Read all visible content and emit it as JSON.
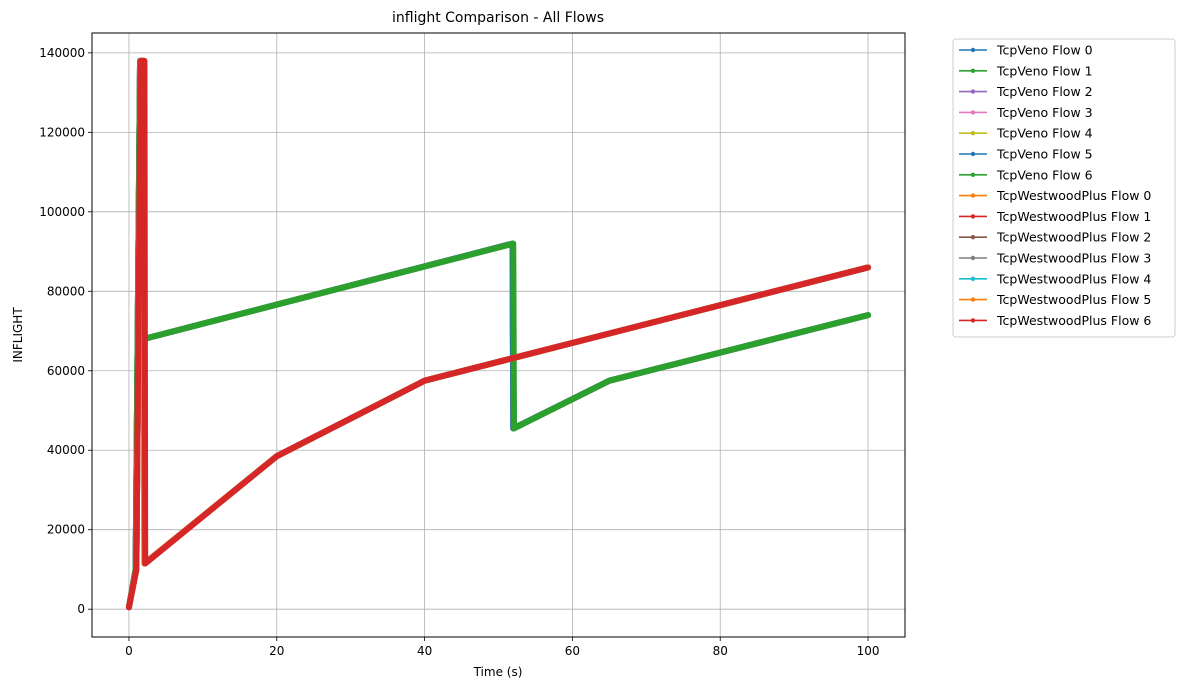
{
  "chart_data": {
    "type": "line",
    "title": "inflight Comparison - All Flows",
    "xlabel": "Time (s)",
    "ylabel": "INFLIGHT",
    "xlim": [
      -5,
      105
    ],
    "ylim": [
      -7000,
      145000
    ],
    "xticks": [
      0,
      20,
      40,
      60,
      80,
      100
    ],
    "yticks": [
      0,
      20000,
      40000,
      60000,
      80000,
      100000,
      120000,
      140000
    ],
    "grid": true,
    "legend_position": "outside-top-right",
    "series": [
      {
        "name": "TcpVeno Flow 0",
        "color": "#1f77b4",
        "points": [
          [
            0,
            500
          ],
          [
            0.9,
            10000
          ],
          [
            1.5,
            138000
          ],
          [
            1.9,
            138000
          ],
          [
            2.0,
            68000
          ],
          [
            51.9,
            92000
          ],
          [
            52.0,
            45500
          ],
          [
            65,
            57500
          ],
          [
            100,
            74000
          ]
        ]
      },
      {
        "name": "TcpVeno Flow 1",
        "color": "#2ca02c",
        "points": [
          [
            0,
            500
          ],
          [
            0.9,
            10000
          ],
          [
            1.5,
            138000
          ],
          [
            1.9,
            138000
          ],
          [
            2.0,
            68000
          ],
          [
            51.9,
            92000
          ],
          [
            52.0,
            45500
          ],
          [
            65,
            57500
          ],
          [
            100,
            74000
          ]
        ]
      },
      {
        "name": "TcpVeno Flow 2",
        "color": "#9467bd",
        "points": [
          [
            0,
            500
          ],
          [
            0.9,
            10000
          ],
          [
            1.5,
            138000
          ],
          [
            1.9,
            138000
          ],
          [
            2.0,
            68000
          ],
          [
            51.9,
            92000
          ],
          [
            52.0,
            45500
          ],
          [
            65,
            57500
          ],
          [
            100,
            74000
          ]
        ]
      },
      {
        "name": "TcpVeno Flow 3",
        "color": "#e377c2",
        "points": [
          [
            0,
            500
          ],
          [
            0.9,
            10000
          ],
          [
            1.5,
            138000
          ],
          [
            1.9,
            138000
          ],
          [
            2.0,
            68000
          ],
          [
            51.9,
            92000
          ],
          [
            52.0,
            45500
          ],
          [
            65,
            57500
          ],
          [
            100,
            74000
          ]
        ]
      },
      {
        "name": "TcpVeno Flow 4",
        "color": "#bcbd22",
        "points": [
          [
            0,
            500
          ],
          [
            0.9,
            10000
          ],
          [
            1.5,
            138000
          ],
          [
            1.9,
            138000
          ],
          [
            2.0,
            68000
          ],
          [
            51.9,
            92000
          ],
          [
            52.0,
            45500
          ],
          [
            65,
            57500
          ],
          [
            100,
            74000
          ]
        ]
      },
      {
        "name": "TcpVeno Flow 5",
        "color": "#1f77b4",
        "points": [
          [
            0,
            500
          ],
          [
            0.9,
            10000
          ],
          [
            1.5,
            138000
          ],
          [
            1.9,
            138000
          ],
          [
            2.0,
            68000
          ],
          [
            51.9,
            92000
          ],
          [
            52.0,
            45500
          ],
          [
            65,
            57500
          ],
          [
            100,
            74000
          ]
        ]
      },
      {
        "name": "TcpVeno Flow 6",
        "color": "#2ca02c",
        "points": [
          [
            0,
            500
          ],
          [
            0.9,
            10000
          ],
          [
            1.5,
            138000
          ],
          [
            1.9,
            138000
          ],
          [
            2.0,
            68000
          ],
          [
            52.0,
            92000
          ],
          [
            52.1,
            45500
          ],
          [
            65,
            57500
          ],
          [
            100,
            74000
          ]
        ]
      },
      {
        "name": "TcpWestwoodPlus Flow 0",
        "color": "#ff7f0e",
        "points": [
          [
            0,
            500
          ],
          [
            1.0,
            10000
          ],
          [
            1.6,
            138000
          ],
          [
            2.0,
            138000
          ],
          [
            2.1,
            11500
          ],
          [
            20,
            38500
          ],
          [
            40,
            57500
          ],
          [
            100,
            86000
          ]
        ]
      },
      {
        "name": "TcpWestwoodPlus Flow 1",
        "color": "#d62728",
        "points": [
          [
            0,
            500
          ],
          [
            1.0,
            10000
          ],
          [
            1.6,
            138000
          ],
          [
            2.0,
            138000
          ],
          [
            2.1,
            11500
          ],
          [
            20,
            38500
          ],
          [
            40,
            57500
          ],
          [
            100,
            86000
          ]
        ]
      },
      {
        "name": "TcpWestwoodPlus Flow 2",
        "color": "#8c564b",
        "points": [
          [
            0,
            500
          ],
          [
            1.0,
            10000
          ],
          [
            1.6,
            138000
          ],
          [
            2.0,
            138000
          ],
          [
            2.1,
            11500
          ],
          [
            20,
            38500
          ],
          [
            40,
            57500
          ],
          [
            100,
            86000
          ]
        ]
      },
      {
        "name": "TcpWestwoodPlus Flow 3",
        "color": "#7f7f7f",
        "points": [
          [
            0,
            500
          ],
          [
            1.0,
            10000
          ],
          [
            1.6,
            138000
          ],
          [
            2.0,
            138000
          ],
          [
            2.1,
            11500
          ],
          [
            20,
            38500
          ],
          [
            40,
            57500
          ],
          [
            100,
            86000
          ]
        ]
      },
      {
        "name": "TcpWestwoodPlus Flow 4",
        "color": "#17becf",
        "points": [
          [
            0,
            500
          ],
          [
            1.0,
            10000
          ],
          [
            1.6,
            138000
          ],
          [
            2.0,
            138000
          ],
          [
            2.1,
            11500
          ],
          [
            20,
            38500
          ],
          [
            40,
            57500
          ],
          [
            100,
            86000
          ]
        ]
      },
      {
        "name": "TcpWestwoodPlus Flow 5",
        "color": "#ff7f0e",
        "points": [
          [
            0,
            500
          ],
          [
            1.0,
            10000
          ],
          [
            1.6,
            138000
          ],
          [
            2.0,
            138000
          ],
          [
            2.1,
            11500
          ],
          [
            20,
            38500
          ],
          [
            40,
            57500
          ],
          [
            100,
            86000
          ]
        ]
      },
      {
        "name": "TcpWestwoodPlus Flow 6",
        "color": "#d62728",
        "points": [
          [
            0,
            500
          ],
          [
            1.0,
            10000
          ],
          [
            1.6,
            138000
          ],
          [
            2.1,
            138000
          ],
          [
            2.2,
            11500
          ],
          [
            20,
            38500
          ],
          [
            40,
            57500
          ],
          [
            100,
            86000
          ]
        ]
      }
    ]
  }
}
